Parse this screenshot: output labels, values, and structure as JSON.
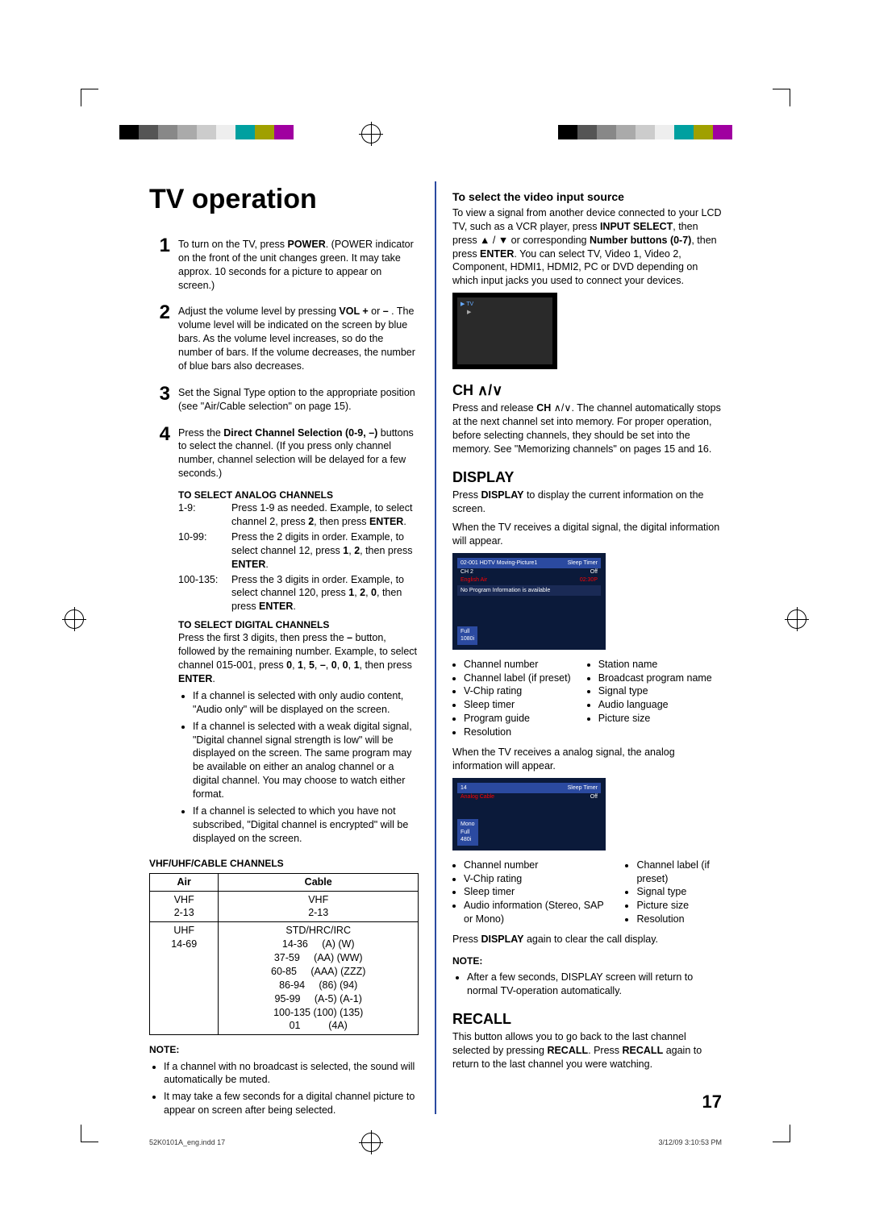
{
  "title": "TV operation",
  "page_number": "17",
  "footer_left": "52K0101A_eng.indd   17",
  "footer_right": "3/12/09   3:10:53 PM",
  "color_bar": [
    "#000000",
    "#555555",
    "#888888",
    "#aaaaaa",
    "#cccccc",
    "#eeeeee",
    "#00a0a0",
    "#a0a000",
    "#a000a0",
    "#ffffff"
  ],
  "steps": [
    {
      "n": "1",
      "body": "To turn on the TV, press <b>POWER</b>. (POWER indicator on the front of the unit changes green. It may take approx. 10 seconds for a picture to appear on screen.)"
    },
    {
      "n": "2",
      "body": "Adjust the volume level by pressing <b>VOL +</b> or <b>–</b> . The volume level will be indicated on the screen by blue bars. As the volume level increases, so do the number of bars. If the volume decreases, the number of blue bars also decreases."
    },
    {
      "n": "3",
      "body": "Set the Signal Type option to the appropriate position (see \"Air/Cable selection\" on page 15)."
    },
    {
      "n": "4",
      "body": "Press the <b>Direct Channel Selection (0-9, –)</b> buttons to select the channel. (If you press only channel number, channel selection will be delayed for a few seconds.)"
    }
  ],
  "analog_hd": "TO SELECT ANALOG CHANNELS",
  "analog_defs": [
    [
      "1-9:",
      "Press 1-9 as needed. Example, to select channel 2, press <b>2</b>, then press <b>ENTER</b>."
    ],
    [
      "10-99:",
      "Press the 2 digits in order. Example, to select channel 12, press <b>1</b>, <b>2</b>, then press <b>ENTER</b>."
    ],
    [
      "100-135:",
      "Press the 3 digits in order. Example, to select channel 120, press <b>1</b>, <b>2</b>, <b>0</b>, then press <b>ENTER</b>."
    ]
  ],
  "digital_hd": "TO SELECT DIGITAL CHANNELS",
  "digital_body": "Press the first 3 digits, then press the <b>–</b> button, followed by the remaining number. Example, to select channel 015-001, press <b>0</b>, <b>1</b>, <b>5</b>, <b>–</b>, <b>0</b>, <b>0</b>, <b>1</b>, then press <b>ENTER</b>.",
  "digital_bullets": [
    "If a channel is selected with only audio content, \"Audio only\" will be displayed on the screen.",
    "If a channel is selected with a weak digital signal, \"Digital channel signal strength is low\" will be displayed on the screen. The same program may be available on either an analog channel or a digital channel. You may choose to watch either format.",
    "If a channel is selected to which you have not subscribed, \"Digital channel is encrypted\" will be displayed on the screen."
  ],
  "vhf_hd": "VHF/UHF/CABLE CHANNELS",
  "table": {
    "headers": [
      "Air",
      "Cable"
    ],
    "rows": [
      [
        "VHF<br>2-13",
        "VHF<br>2-13"
      ],
      [
        "UHF<br>14-69",
        "STD/HRC/IRC<br>14-36&nbsp;&nbsp;&nbsp;&nbsp;&nbsp;(A) (W)<br>37-59&nbsp;&nbsp;&nbsp;&nbsp;&nbsp;(AA) (WW)<br>60-85&nbsp;&nbsp;&nbsp;&nbsp;&nbsp;(AAA) (ZZZ)<br>86-94&nbsp;&nbsp;&nbsp;&nbsp;&nbsp;(86) (94)<br>95-99&nbsp;&nbsp;&nbsp;&nbsp;&nbsp;(A-5) (A-1)<br>100-135&nbsp;(100) (135)<br>01&nbsp;&nbsp;&nbsp;&nbsp;&nbsp;&nbsp;&nbsp;&nbsp;&nbsp;&nbsp;(4A)"
      ]
    ]
  },
  "note1_hd": "NOTE:",
  "note1": [
    "If a channel with no broadcast is selected, the sound will automatically be muted.",
    "It may take a few seconds for a digital channel picture to appear on screen after being selected."
  ],
  "r_input_hd": "To select the video input source",
  "r_input_body": "To view a signal from another device connected to your LCD TV, such as a VCR player, press <b>INPUT SELECT</b>, then press ▲ / ▼ or corresponding <b>Number buttons (0-7)</b>, then press <b>ENTER</b>. You can select TV, Video 1, Video 2, Component, HDMI1, HDMI2, PC or DVD depending on which input jacks you used to connect your devices.",
  "ch_hd": "CH",
  "ch_body": "Press and release <b>CH</b> ∧/∨. The channel automatically stops at the next channel set into memory. For proper operation, before selecting channels, they should be set into the memory. See \"Memorizing channels\" on pages 15 and 16.",
  "display_hd": "DISPLAY",
  "display_p1": "Press <b>DISPLAY</b> to display the current information on the screen.",
  "display_p2": "When the TV receives a digital signal, the digital information will appear.",
  "tv1_lines": [
    "02-001  HDTV Moving-Picture1",
    "CH 2",
    "English   Air",
    "No Program Information is available",
    "",
    "Full",
    "1080i",
    "Sleep Timer",
    "Off",
    "02:30P"
  ],
  "dig_bullets_l": [
    "Channel number",
    "Channel label (if preset)",
    "V-Chip rating",
    "Sleep timer",
    "Program guide",
    "Resolution"
  ],
  "dig_bullets_r": [
    "Station name",
    "Broadcast program name",
    "Signal type",
    "Audio language",
    "Picture size"
  ],
  "display_p3": "When the TV receives a analog signal, the analog information will appear.",
  "tv2_lines": [
    "14",
    "Analog   Cable",
    "",
    "Mono",
    "Full",
    "480i",
    "Sleep Timer",
    "Off"
  ],
  "ana_bullets_l": [
    "Channel number",
    "V-Chip rating",
    "Sleep timer",
    "Audio information (Stereo, SAP or Mono)"
  ],
  "ana_bullets_r": [
    "Channel label (if preset)",
    "Signal type",
    "Picture size",
    "Resolution"
  ],
  "display_p4": "Press <b>DISPLAY</b> again to clear the call display.",
  "note2_hd": "NOTE:",
  "note2": [
    "After a few seconds, DISPLAY screen will return to normal TV-operation automatically."
  ],
  "recall_hd": "RECALL",
  "recall_body": "This button allows you to go back to the last channel selected by pressing <b>RECALL</b>. Press <b>RECALL</b> again to return to the last channel you were watching."
}
